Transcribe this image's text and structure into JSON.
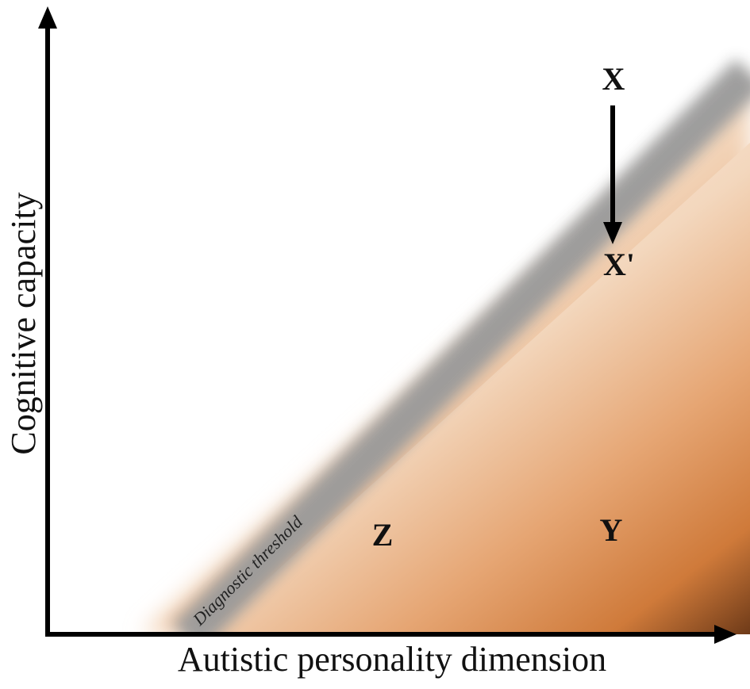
{
  "axes": {
    "x_label": "Autistic personality dimension",
    "y_label": "Cognitive capacity"
  },
  "threshold": {
    "label": "Diagnostic threshold"
  },
  "points": {
    "x": "X",
    "x_prime": "X'",
    "y": "Y",
    "z": "Z"
  },
  "colors": {
    "axis": "#000000",
    "threshold_band": "#9e9e9e",
    "region_light": "#f3dcc6",
    "region_mid": "#e8a978",
    "region_dark": "#c06a2c",
    "region_darkest": "#7a3e18"
  }
}
